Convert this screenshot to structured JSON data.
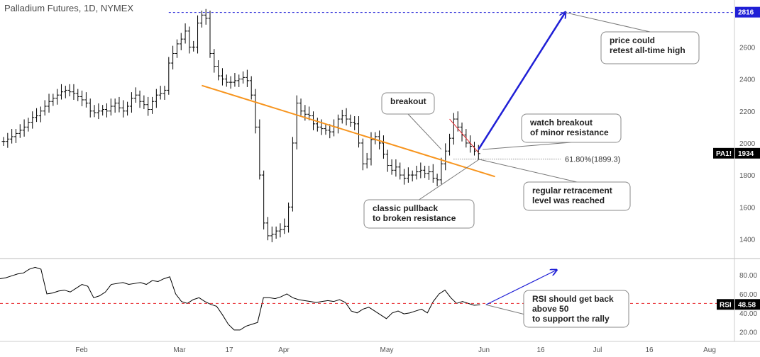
{
  "header": {
    "title": "Palladium Futures, 1D, NYMEX"
  },
  "colors": {
    "resistance": "#f7941d",
    "breakout_line": "#e8252a",
    "projection": "#1f1fd6",
    "ath_line": "#1f1fd6",
    "rsi_mid": "#e8252a",
    "price_bars": "#000000"
  },
  "chart_data": [
    {
      "type": "line",
      "title": "Palladium Futures, 1D, NYMEX",
      "series_name": "PA1!",
      "last_value_tag": "1934",
      "ath_tag": "2816",
      "ylim": [
        1300,
        2850
      ],
      "y_ticks": [
        1400,
        1600,
        1800,
        2000,
        2200,
        2400,
        2600
      ],
      "y_tick_labels": [
        "1400",
        "1600",
        "1800",
        "2000",
        "2200",
        "2400",
        "2600"
      ],
      "x_labels": [
        "Feb",
        "Mar",
        "17",
        "Apr",
        "May",
        "Jun",
        "16",
        "Jul",
        "16",
        "Aug"
      ],
      "closes": [
        2010,
        2025,
        2040,
        2060,
        2080,
        2100,
        2130,
        2160,
        2170,
        2200,
        2230,
        2260,
        2280,
        2300,
        2320,
        2330,
        2320,
        2310,
        2290,
        2270,
        2250,
        2200,
        2190,
        2200,
        2210,
        2200,
        2230,
        2250,
        2220,
        2200,
        2230,
        2280,
        2300,
        2260,
        2240,
        2210,
        2260,
        2300,
        2310,
        2330,
        2500,
        2560,
        2620,
        2650,
        2700,
        2600,
        2600,
        2750,
        2800,
        2780,
        2560,
        2480,
        2420,
        2400,
        2380,
        2380,
        2390,
        2400,
        2410,
        2390,
        2300,
        2100,
        1800,
        1500,
        1420,
        1430,
        1450,
        1460,
        1480,
        1600,
        2000,
        2250,
        2200,
        2180,
        2170,
        2120,
        2100,
        2090,
        2080,
        2070,
        2100,
        2150,
        2170,
        2150,
        2130,
        2120,
        2000,
        1870,
        1900,
        2020,
        2040,
        2000,
        1930,
        1860,
        1830,
        1850,
        1800,
        1780,
        1800,
        1800,
        1820,
        1830,
        1810,
        1820,
        1780,
        1770,
        1870,
        1950,
        2030,
        2150,
        2100,
        2050,
        2000,
        1980,
        1950,
        1934
      ],
      "resistance_line": {
        "start": [
          48,
          2360
        ],
        "end": [
          119,
          1790
        ]
      },
      "minor_resistance": {
        "start": [
          108,
          2150
        ],
        "end": [
          115,
          1940
        ]
      },
      "projection_arrow": {
        "start": [
          115,
          1960
        ],
        "end": [
          136,
          2816
        ]
      },
      "fib_level": {
        "label": "61.80%(1899.3)",
        "value": 1899.3
      },
      "annotations": [
        "breakout",
        "watch breakout\nof minor resistance",
        "price could\nretest all-time high",
        "regular retracement\nlevel was reached",
        "classic pullback\nto broken resistance"
      ]
    },
    {
      "type": "line",
      "series_name": "RSI",
      "last_value_tag": "48.58",
      "ylim": [
        10,
        95
      ],
      "y_ticks": [
        20,
        40,
        60,
        80
      ],
      "y_tick_labels": [
        "20.00",
        "40.00",
        "60.00",
        "80.00"
      ],
      "midline": 50,
      "values": [
        76,
        77,
        79,
        81,
        82,
        86,
        88,
        86,
        60,
        61,
        63,
        64,
        62,
        66,
        70,
        68,
        56,
        58,
        62,
        70,
        71,
        72,
        70,
        71,
        72,
        70,
        74,
        73,
        76,
        78,
        60,
        52,
        50,
        54,
        56,
        52,
        49,
        47,
        38,
        28,
        22,
        22,
        26,
        28,
        30,
        56,
        56,
        55,
        57,
        60,
        56,
        54,
        53,
        52,
        51,
        52,
        53,
        52,
        54,
        51,
        42,
        40,
        44,
        46,
        42,
        38,
        34,
        40,
        42,
        39,
        40,
        42,
        44,
        40,
        52,
        60,
        64,
        56,
        50,
        52,
        50,
        48,
        48.58
      ],
      "projection_arrow": {
        "start": [
          83,
          48.58
        ],
        "end": [
          95,
          85
        ]
      },
      "annotations": [
        "RSI should get back\nabove 50\nto support the rally"
      ]
    }
  ]
}
